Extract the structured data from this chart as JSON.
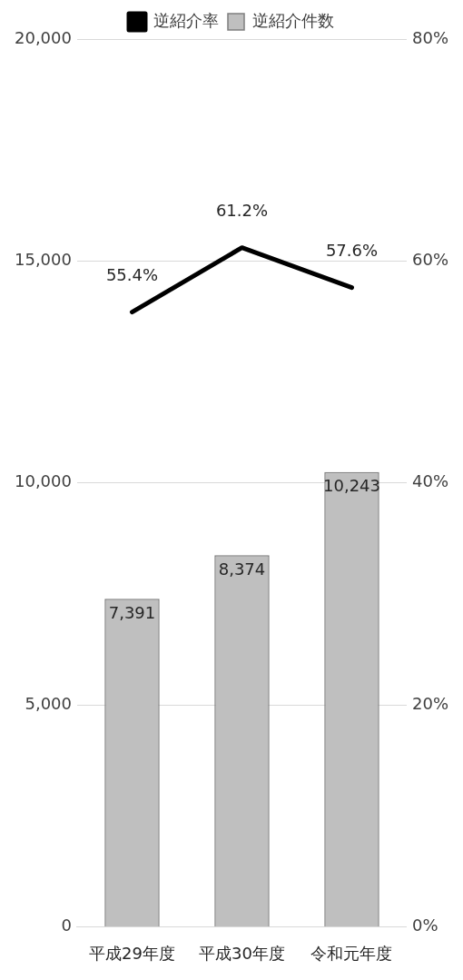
{
  "chart_data": {
    "type": "bar",
    "categories": [
      "平成29年度",
      "平成30年度",
      "令和元年度"
    ],
    "series": [
      {
        "name": "逆紹介件数",
        "color": "#bfbfbf",
        "values": [
          7391,
          8374,
          10243
        ],
        "value_labels": [
          "7,391",
          "8,374",
          "10,243"
        ]
      },
      {
        "name": "逆紹介率",
        "type": "line",
        "color": "#000000",
        "axis": "y2",
        "values": [
          55.4,
          61.2,
          57.6
        ],
        "value_labels": [
          "55.4%",
          "61.2%",
          "57.6%"
        ]
      }
    ],
    "ylim": [
      0,
      20000
    ],
    "yticks": [
      {
        "value": 0,
        "label": "0"
      },
      {
        "value": 5000,
        "label": "5,000"
      },
      {
        "value": 10000,
        "label": "10,000"
      },
      {
        "value": 15000,
        "label": "15,000"
      },
      {
        "value": 20000,
        "label": "20,000"
      }
    ],
    "y2lim": [
      0,
      80
    ],
    "y2ticks": [
      {
        "value": 0,
        "label": "0%"
      },
      {
        "value": 20,
        "label": "20%"
      },
      {
        "value": 40,
        "label": "40%"
      },
      {
        "value": 60,
        "label": "60%"
      },
      {
        "value": 80,
        "label": "80%"
      }
    ],
    "grid": "y",
    "legend": "top",
    "marker": "none",
    "line_style": "solid"
  }
}
